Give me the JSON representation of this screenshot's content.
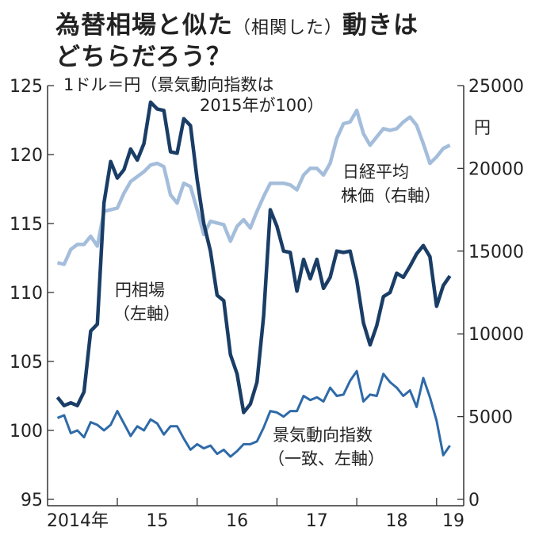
{
  "chart_data": {
    "type": "line",
    "title_line1": "為替相場と似た",
    "title_paren": "（相関した）",
    "title_line1_end": "動きは",
    "title_line2": "どちらだろう？",
    "unit_note_line1": "1ドル＝円（景気動向指数は",
    "unit_note_line2": "2015年が100）",
    "right_unit": "円",
    "x_start": "2014-04",
    "x_tick_labels": [
      "2014年",
      "15",
      "16",
      "17",
      "18",
      "19"
    ],
    "left_axis": {
      "ticks": [
        125,
        120,
        115,
        110,
        105,
        100,
        95
      ],
      "ylim": [
        95,
        125
      ]
    },
    "right_axis": {
      "ticks": [
        25000,
        20000,
        15000,
        10000,
        5000,
        0
      ],
      "ylim": [
        0,
        25000
      ]
    },
    "series": [
      {
        "name": "日経平均株価",
        "label_line1": "日経平均",
        "label_line2": "株価（右軸）",
        "axis": "right",
        "color": "#a4bddb",
        "values": [
          14300,
          14200,
          15100,
          15400,
          15400,
          15900,
          15300,
          17400,
          17500,
          17600,
          18500,
          19200,
          19500,
          19800,
          20200,
          20300,
          20100,
          18400,
          17900,
          19100,
          18900,
          17500,
          16000,
          16800,
          16700,
          16600,
          15600,
          16500,
          16900,
          16400,
          17400,
          18300,
          19100,
          19100,
          19100,
          19000,
          18700,
          19600,
          20000,
          20000,
          19600,
          20300,
          21800,
          22700,
          22800,
          23500,
          22100,
          21400,
          21900,
          22400,
          22300,
          22400,
          22800,
          23100,
          22600,
          21500,
          20300,
          20700,
          21200,
          21400
        ]
      },
      {
        "name": "円相場",
        "label_line1": "円相場",
        "label_line2": "（左軸）",
        "axis": "left",
        "color": "#1a3d66",
        "values": [
          102.4,
          101.8,
          102.0,
          101.8,
          102.8,
          107.2,
          107.7,
          116.5,
          119.5,
          118.3,
          118.9,
          120.4,
          119.6,
          120.8,
          123.8,
          123.3,
          123.2,
          120.2,
          120.1,
          122.6,
          122.1,
          118.2,
          115.0,
          113.0,
          109.8,
          109.4,
          105.5,
          104.1,
          101.3,
          101.9,
          103.5,
          108.3,
          116.0,
          114.8,
          113.0,
          112.9,
          110.1,
          112.4,
          111.0,
          112.4,
          110.3,
          111.1,
          113.0,
          112.9,
          113.0,
          110.9,
          107.8,
          106.2,
          107.6,
          109.7,
          110.0,
          111.4,
          111.1,
          111.9,
          112.8,
          113.4,
          112.6,
          109.0,
          110.5,
          111.2
        ]
      },
      {
        "name": "景気動向指数",
        "label_line1": "景気動向指数",
        "label_line2": "（一致、左軸）",
        "axis": "left",
        "color": "#2f6aa8",
        "values": [
          100.9,
          101.1,
          99.8,
          100.0,
          99.5,
          100.6,
          100.4,
          100.0,
          100.4,
          101.4,
          100.5,
          99.6,
          100.3,
          100.0,
          100.8,
          100.5,
          99.7,
          100.3,
          100.3,
          99.4,
          98.6,
          99.0,
          98.7,
          98.9,
          98.3,
          98.6,
          98.1,
          98.5,
          99.0,
          99.0,
          99.2,
          100.2,
          101.4,
          101.3,
          101.0,
          101.4,
          101.4,
          102.5,
          102.2,
          102.4,
          102.1,
          103.1,
          102.5,
          102.6,
          103.6,
          104.3,
          102.1,
          102.6,
          102.5,
          104.1,
          103.5,
          103.1,
          102.5,
          102.9,
          101.7,
          103.8,
          102.4,
          100.7,
          98.2,
          98.9
        ]
      }
    ]
  }
}
